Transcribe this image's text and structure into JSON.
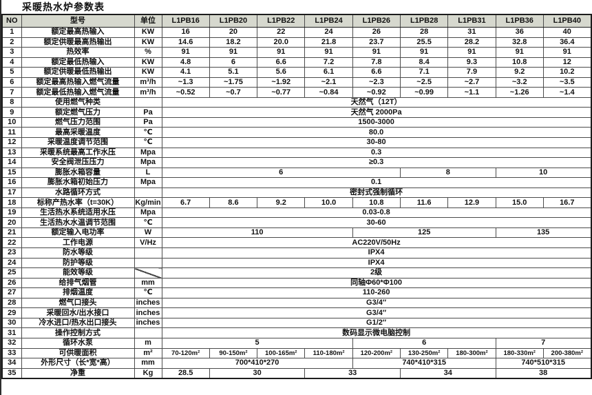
{
  "title": "采暖热水炉参数表",
  "colors": {
    "header_bg": "#d6d8ce",
    "border": "#4a4a4a",
    "outer_border": "#1c1c1c",
    "text": "#111111",
    "background": "#ffffff"
  },
  "columns": [
    "NO",
    "型号",
    "单位",
    "L1PB16",
    "L1PB20",
    "L1PB22",
    "L1PB24",
    "L1PB26",
    "L1PB28",
    "L1PB31",
    "L1PB36",
    "L1PB40"
  ],
  "rows": [
    {
      "no": "1",
      "label": "额定最高热输入",
      "unit": "KW",
      "cells": [
        "16",
        "20",
        "22",
        "24",
        "26",
        "28",
        "31",
        "36",
        "40"
      ]
    },
    {
      "no": "2",
      "label": "额定供暖最高热输出",
      "unit": "KW",
      "cells": [
        "14.6",
        "18.2",
        "20.0",
        "21.8",
        "23.7",
        "25.5",
        "28.2",
        "32.8",
        "36.4"
      ]
    },
    {
      "no": "3",
      "label": "热效率",
      "unit": "%",
      "cells": [
        "91",
        "91",
        "91",
        "91",
        "91",
        "91",
        "91",
        "91",
        "91"
      ]
    },
    {
      "no": "4",
      "label": "额定最低热输入",
      "unit": "KW",
      "cells": [
        "4.8",
        "6",
        "6.6",
        "7.2",
        "7.8",
        "8.4",
        "9.3",
        "10.8",
        "12"
      ]
    },
    {
      "no": "5",
      "label": "额定供暖最低热输出",
      "unit": "KW",
      "cells": [
        "4.1",
        "5.1",
        "5.6",
        "6.1",
        "6.6",
        "7.1",
        "7.9",
        "9.2",
        "10.2"
      ]
    },
    {
      "no": "6",
      "label": "额定最高热输入燃气流量",
      "unit": "m³/h",
      "cells": [
        "~1.3",
        "~1.75",
        "~1.92",
        "~2.1",
        "~2.3",
        "~2.5",
        "~2.7",
        "~3.2",
        "~3.5"
      ]
    },
    {
      "no": "7",
      "label": "额定最低热输入燃气流量",
      "unit": "m³/h",
      "cells": [
        "~0.52",
        "~0.7",
        "~0.77",
        "~0.84",
        "~0.92",
        "~0.99",
        "~1.1",
        "~1.26",
        "~1.4"
      ]
    },
    {
      "no": "8",
      "label": "使用燃气种类",
      "unit": "",
      "cells": [
        {
          "t": "天然气（12T）",
          "s": 9
        }
      ]
    },
    {
      "no": "9",
      "label": "额定燃气压力",
      "unit": "Pa",
      "cells": [
        {
          "t": "天然气 2000Pa",
          "s": 9
        }
      ]
    },
    {
      "no": "10",
      "label": "燃气压力范围",
      "unit": "Pa",
      "cells": [
        {
          "t": "1500-3000",
          "s": 9
        }
      ]
    },
    {
      "no": "11",
      "label": "最高采暖温度",
      "unit": "℃",
      "cells": [
        {
          "t": "80.0",
          "s": 9
        }
      ]
    },
    {
      "no": "12",
      "label": "采暖温度调节范围",
      "unit": "℃",
      "cells": [
        {
          "t": "30-80",
          "s": 9
        }
      ]
    },
    {
      "no": "13",
      "label": "采暖系统最高工作水压",
      "unit": "Mpa",
      "cells": [
        {
          "t": "0.3",
          "s": 9
        }
      ]
    },
    {
      "no": "14",
      "label": "安全阀泄压压力",
      "unit": "Mpa",
      "cells": [
        {
          "t": "≥0.3",
          "s": 9
        }
      ]
    },
    {
      "no": "15",
      "label": "膨胀水箱容量",
      "unit": "L",
      "cells": [
        {
          "t": "6",
          "s": 5
        },
        {
          "t": "8",
          "s": 2
        },
        {
          "t": "10",
          "s": 2
        }
      ]
    },
    {
      "no": "16",
      "label": "膨胀水箱初始压力",
      "unit": "Mpa",
      "cells": [
        {
          "t": "0.1",
          "s": 9
        }
      ]
    },
    {
      "no": "17",
      "label": "水路循环方式",
      "unit": "",
      "cells": [
        {
          "t": "密封式强制循环",
          "s": 9
        }
      ]
    },
    {
      "no": "18",
      "label": "标称产热水率（t=30K）",
      "unit": "Kg/min",
      "cells": [
        "6.7",
        "8.6",
        "9.2",
        "10.0",
        "10.8",
        "11.6",
        "12.9",
        "15.0",
        "16.7"
      ]
    },
    {
      "no": "19",
      "label": "生活热水系统适用水压",
      "unit": "Mpa",
      "cells": [
        {
          "t": "0.03-0.8",
          "s": 9
        }
      ]
    },
    {
      "no": "20",
      "label": "生活热水水温调节范围",
      "unit": "℃",
      "cells": [
        {
          "t": "30-60",
          "s": 9
        }
      ]
    },
    {
      "no": "21",
      "label": "额定输入电功率",
      "unit": "W",
      "cells": [
        {
          "t": "110",
          "s": 4
        },
        {
          "t": "125",
          "s": 3
        },
        {
          "t": "135",
          "s": 2
        }
      ]
    },
    {
      "no": "22",
      "label": "工作电源",
      "unit": "V/Hz",
      "cells": [
        {
          "t": "AC220V/50Hz",
          "s": 9
        }
      ]
    },
    {
      "no": "23",
      "label": "防水等级",
      "unit": "",
      "cells": [
        {
          "t": "IPX4",
          "s": 9
        }
      ]
    },
    {
      "no": "24",
      "label": "防护等级",
      "unit": "",
      "cells": [
        {
          "t": "IPX4",
          "s": 9
        }
      ]
    },
    {
      "no": "25",
      "label": "能效等级",
      "unit": "",
      "unit_slash": true,
      "cells": [
        {
          "t": "2级",
          "s": 9
        }
      ]
    },
    {
      "no": "26",
      "label": "给排气烟管",
      "unit": "mm",
      "cells": [
        {
          "t": "同轴Φ60*Φ100",
          "s": 9
        }
      ]
    },
    {
      "no": "27",
      "label": "排烟温度",
      "unit": "℃",
      "cells": [
        {
          "t": "110-260",
          "s": 9
        }
      ]
    },
    {
      "no": "28",
      "label": "燃气口接头",
      "unit": "inches",
      "cells": [
        {
          "t": "G3/4″",
          "s": 9
        }
      ]
    },
    {
      "no": "29",
      "label": "采暖回水/出水接口",
      "unit": "inches",
      "cells": [
        {
          "t": "G3/4″",
          "s": 9
        }
      ]
    },
    {
      "no": "30",
      "label": "冷水进口/热水出口接头",
      "unit": "inches",
      "cells": [
        {
          "t": "G1/2″",
          "s": 9
        }
      ]
    },
    {
      "no": "31",
      "label": "操作控制方式",
      "unit": "",
      "cells": [
        {
          "t": "数码显示微电脑控制",
          "s": 9
        }
      ]
    },
    {
      "no": "32",
      "label": "循环水泵",
      "unit": "m",
      "cells": [
        {
          "t": "5",
          "s": 4
        },
        {
          "t": "6",
          "s": 3
        },
        {
          "t": "7",
          "s": 2
        }
      ]
    },
    {
      "no": "33",
      "label": "可供暖面积",
      "unit": "m²",
      "cells": [
        "70-120m²",
        "90-150m²",
        "100-165m²",
        "110-180m²",
        "120-200m²",
        "130-250m²",
        "180-300m²",
        "180-330m²",
        "200-380m²"
      ]
    },
    {
      "no": "34",
      "label": "外形尺寸（长*宽*高）",
      "unit": "mm",
      "cells": [
        {
          "t": "700*410*270",
          "s": 4
        },
        {
          "t": "740*410*315",
          "s": 3
        },
        {
          "t": "740*510*315",
          "s": 2
        }
      ]
    },
    {
      "no": "35",
      "label": "净重",
      "unit": "Kg",
      "cells": [
        {
          "t": "28.5",
          "s": 1
        },
        {
          "t": "30",
          "s": 2
        },
        {
          "t": "33",
          "s": 2
        },
        {
          "t": "34",
          "s": 2
        },
        {
          "t": "38",
          "s": 2
        }
      ]
    }
  ]
}
